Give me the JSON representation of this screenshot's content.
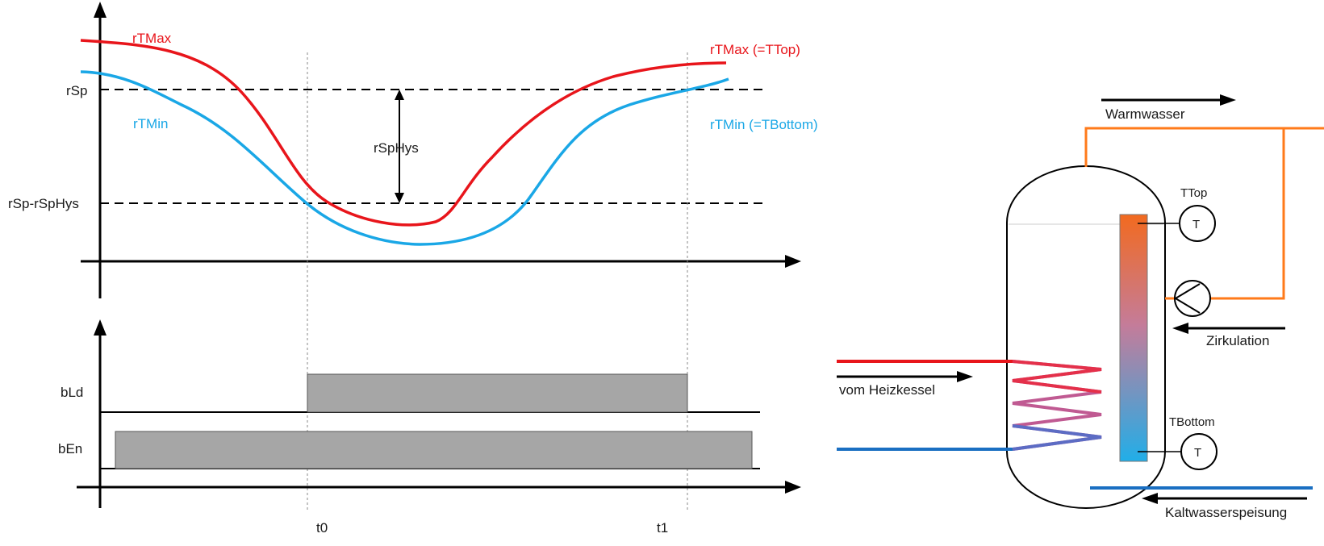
{
  "timing": {
    "labels": {
      "rtmax_left": "rTMax",
      "rtmax_right": "rTMax (=TTop)",
      "rtmin_left": "rTMin",
      "rtmin_right": "rTMin (=TBottom)",
      "rsp": "rSp",
      "rsp_minus_hys": "rSp-rSpHys",
      "rsphys": "rSpHys",
      "bld": "bLd",
      "ben": "bEn",
      "t0": "t0",
      "t1": "t1"
    },
    "colors": {
      "rtmax": "#e8151b",
      "rtmin": "#1aa7e6",
      "signal_fill": "#a6a6a6"
    }
  },
  "tank": {
    "labels": {
      "warmwasser": "Warmwasser",
      "ttop": "TTop",
      "t_top_sensor": "T",
      "zirkulation": "Zirkulation",
      "vom_heizkessel": "vom Heizkessel",
      "tbottom": "TBottom",
      "t_bottom_sensor": "T",
      "kaltwasserspeisung": "Kaltwasserspeisung"
    },
    "colors": {
      "hot_pipe": "#ff7a1a",
      "heating_in": "#e8151b",
      "cold_pipe": "#1a6fc2"
    }
  }
}
